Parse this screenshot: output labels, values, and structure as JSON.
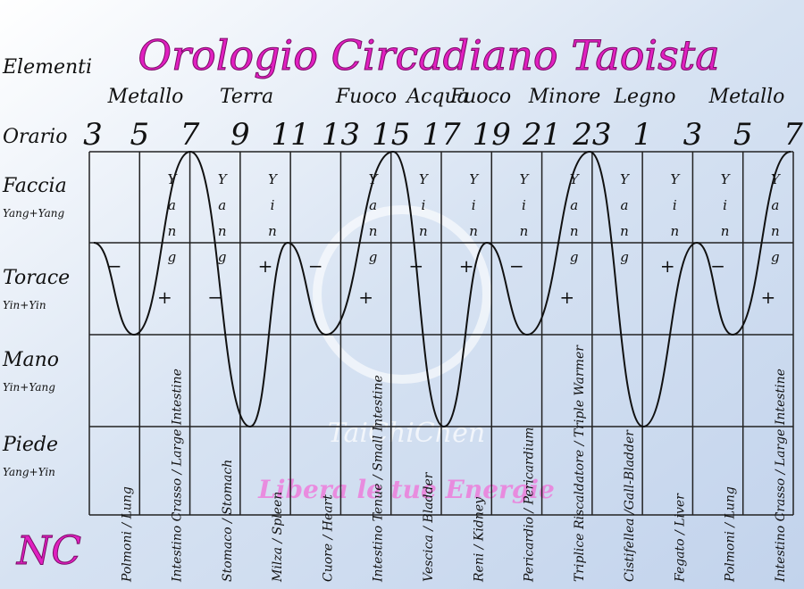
{
  "title": "Orologio Circadiano Taoista",
  "elements_label": "Elementi",
  "elements": [
    "Metallo",
    "Terra",
    "Fuoco",
    "Acqua",
    "Fuoco",
    "Minore",
    "Legno",
    "Metallo"
  ],
  "hours_label": "Orario",
  "hours": [
    3,
    5,
    7,
    9,
    11,
    13,
    15,
    17,
    19,
    21,
    23,
    1,
    3,
    5,
    7
  ],
  "rows": [
    {
      "label": "Faccia",
      "sub": "Yang+Yang"
    },
    {
      "label": "Torace",
      "sub": "Yin+Yin"
    },
    {
      "label": "Mano",
      "sub": "Yin+Yang"
    },
    {
      "label": "Piede",
      "sub": "Yang+Yin"
    }
  ],
  "columns": [
    {
      "sign": "−",
      "meridian": "Polmoni / Lung"
    },
    {
      "polarity": "Yang",
      "sign": "+",
      "meridian": "Intestino Crasso / Large Intestine"
    },
    {
      "polarity": "Yang",
      "sign": "−",
      "meridian": "Stomaco / Stomach"
    },
    {
      "polarity": "Yin",
      "sign": "+",
      "meridian": "Milza / Spleen"
    },
    {
      "sign": "−",
      "meridian": "Cuore / Heart"
    },
    {
      "polarity": "Yang",
      "sign": "+",
      "meridian": "Intestino Tenue / Small Intestine"
    },
    {
      "polarity": "Yin",
      "sign": "−",
      "meridian": "Vescica / Bladder"
    },
    {
      "polarity": "Yin",
      "sign": "+",
      "meridian": "Reni / Kidney"
    },
    {
      "polarity": "Yin",
      "sign": "−",
      "meridian": "Pericardio / Pericardium"
    },
    {
      "polarity": "Yang",
      "sign": "+",
      "meridian": "Triplice Riscaldatore / Triple Warmer"
    },
    {
      "polarity": "Yang",
      "meridian": "Cistifellea /Gall-Bladder"
    },
    {
      "polarity": "Yin",
      "sign": "+",
      "meridian": "Fegato / Liver"
    },
    {
      "polarity": "Yin",
      "sign": "−",
      "meridian": "Polmoni / Lung"
    },
    {
      "polarity": "Yang",
      "sign": "+",
      "meridian": "Intestino Crasso / Large Intestine"
    }
  ],
  "watermark": "TaiChiChen",
  "slogan": "Libera le tue Energie",
  "logo": "NC"
}
